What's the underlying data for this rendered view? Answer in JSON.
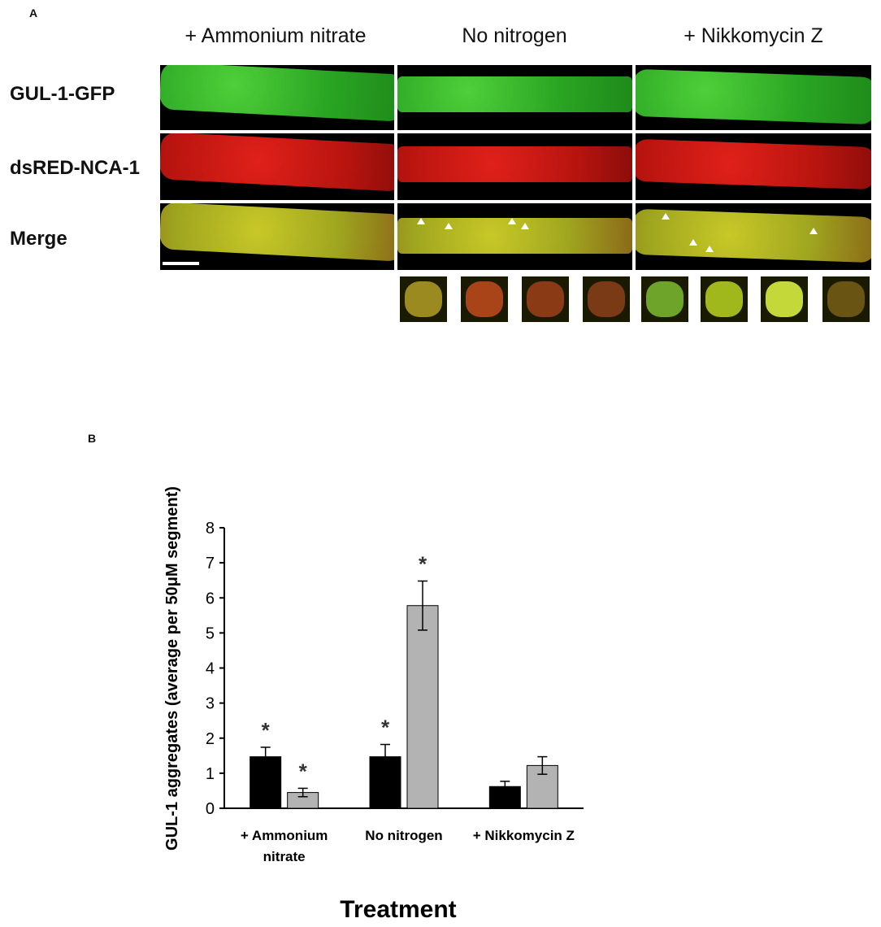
{
  "panel_a": {
    "letter": "A",
    "columns": [
      "+ Ammonium nitrate",
      "No nitrogen",
      "+ Nikkomycin Z"
    ],
    "rows": [
      "GUL-1-GFP",
      "dsRED-NCA-1",
      "Merge"
    ]
  },
  "panel_b": {
    "letter": "B"
  },
  "chart_data": {
    "type": "bar",
    "categories": [
      "+ Ammonium nitrate",
      "No nitrogen",
      "+ Nikkomycin Z"
    ],
    "category_lines": [
      [
        "+ Ammonium",
        "nitrate"
      ],
      [
        "No nitrogen"
      ],
      [
        "+ Nikkomycin  Z"
      ]
    ],
    "series": [
      {
        "values": [
          1.47,
          1.47,
          0.62
        ],
        "errors": [
          0.27,
          0.35,
          0.15
        ],
        "sig": [
          true,
          true,
          false
        ],
        "color": "#000000"
      },
      {
        "values": [
          0.45,
          5.78,
          1.22
        ],
        "errors": [
          0.12,
          0.7,
          0.25
        ],
        "sig": [
          true,
          true,
          false
        ],
        "color": "#b3b3b3"
      }
    ],
    "title": "",
    "xlabel": "Treatment",
    "ylabel": "GUL-1 aggregates (average per 50μM segment)",
    "ylim": [
      0,
      8
    ],
    "yticks": [
      0,
      1,
      2,
      3,
      4,
      5,
      6,
      7,
      8
    ],
    "sig_symbol": "*",
    "grid": false,
    "legend": "none"
  }
}
